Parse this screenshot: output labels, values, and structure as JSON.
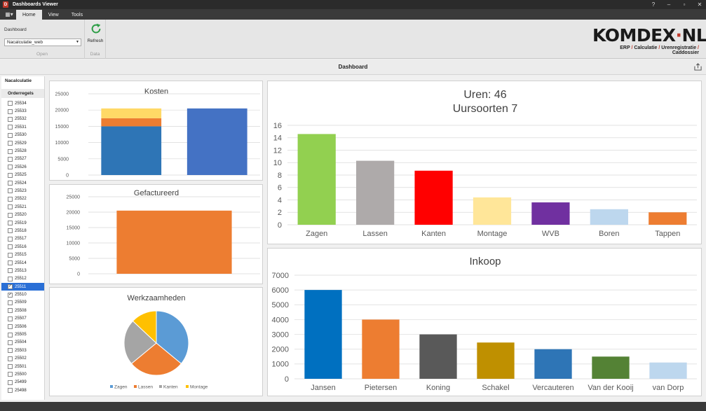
{
  "window": {
    "title": "Dashboards Viewer",
    "logo_letter": "D"
  },
  "tabs": [
    {
      "label": "Home"
    },
    {
      "label": "View"
    },
    {
      "label": "Tools"
    }
  ],
  "ribbon": {
    "dashboard_label": "Dashboard",
    "dashboard_value": "Nacalculatie_web",
    "group_open": "Open",
    "refresh_label": "Refresh",
    "group_data": "Data"
  },
  "brand": {
    "name_a": "KOMDEX",
    "name_dot": "·",
    "name_b": "NL",
    "tagline": [
      "ERP",
      "Calculatie",
      "Urenregistratie",
      "Caddossier"
    ]
  },
  "dashboard": {
    "title": "Dashboard"
  },
  "left_panel": {
    "heading": "Nacalculatie",
    "subheading": "Orderregels",
    "items": [
      {
        "label": "25534",
        "checked": false
      },
      {
        "label": "25533",
        "checked": false
      },
      {
        "label": "25532",
        "checked": false
      },
      {
        "label": "25531",
        "checked": false
      },
      {
        "label": "25530",
        "checked": false
      },
      {
        "label": "25529",
        "checked": false
      },
      {
        "label": "25528",
        "checked": false
      },
      {
        "label": "25527",
        "checked": false
      },
      {
        "label": "25526",
        "checked": false
      },
      {
        "label": "25525",
        "checked": false
      },
      {
        "label": "25524",
        "checked": false
      },
      {
        "label": "25523",
        "checked": false
      },
      {
        "label": "25522",
        "checked": false
      },
      {
        "label": "25521",
        "checked": false
      },
      {
        "label": "25520",
        "checked": false
      },
      {
        "label": "25519",
        "checked": false
      },
      {
        "label": "25518",
        "checked": false
      },
      {
        "label": "25517",
        "checked": false
      },
      {
        "label": "25516",
        "checked": false
      },
      {
        "label": "25515",
        "checked": false
      },
      {
        "label": "25514",
        "checked": false
      },
      {
        "label": "25513",
        "checked": false
      },
      {
        "label": "25512",
        "checked": false
      },
      {
        "label": "25511",
        "checked": true,
        "selected": true
      },
      {
        "label": "25510",
        "checked": true
      },
      {
        "label": "25509",
        "checked": false
      },
      {
        "label": "25508",
        "checked": false
      },
      {
        "label": "25507",
        "checked": false
      },
      {
        "label": "25506",
        "checked": false
      },
      {
        "label": "25505",
        "checked": false
      },
      {
        "label": "25504",
        "checked": false
      },
      {
        "label": "25503",
        "checked": false
      },
      {
        "label": "25502",
        "checked": false
      },
      {
        "label": "25501",
        "checked": false
      },
      {
        "label": "25500",
        "checked": false
      },
      {
        "label": "25499",
        "checked": false
      },
      {
        "label": "25498",
        "checked": false
      }
    ]
  },
  "chart_data": [
    {
      "id": "kosten",
      "type": "bar",
      "stacked": true,
      "title": "Kosten",
      "categories": [
        "",
        ""
      ],
      "series": [
        {
          "values": [
            15000,
            0
          ],
          "color": "#2e75b6"
        },
        {
          "values": [
            2500,
            0
          ],
          "color": "#ed7d31"
        },
        {
          "values": [
            3000,
            0
          ],
          "color": "#ffd966"
        },
        {
          "values": [
            0,
            20500
          ],
          "color": "#4472c4"
        }
      ],
      "yticks": [
        0,
        5000,
        10000,
        15000,
        20000,
        25000
      ],
      "ylim": [
        0,
        25000
      ],
      "grid": true
    },
    {
      "id": "gefactureerd",
      "type": "bar",
      "title": "Gefactureerd",
      "categories": [
        ""
      ],
      "values": [
        20500
      ],
      "colors": [
        "#ed7d31"
      ],
      "yticks": [
        0,
        5000,
        10000,
        15000,
        20000,
        25000
      ],
      "ylim": [
        0,
        25000
      ],
      "grid": true
    },
    {
      "id": "werkzaamheden",
      "type": "pie",
      "title": "Werkzaamheden",
      "categories": [
        "Zagen",
        "Lassen",
        "Kanten",
        "Montage"
      ],
      "values": [
        36,
        28,
        23,
        13
      ],
      "colors": [
        "#5b9bd5",
        "#ed7d31",
        "#a5a5a5",
        "#ffc000"
      ],
      "legend": "bottom"
    },
    {
      "id": "uren",
      "type": "bar",
      "title": "Uren: 46",
      "subtitle": "Uursoorten 7",
      "categories": [
        "Zagen",
        "Lassen",
        "Kanten",
        "Montage",
        "WVB",
        "Boren",
        "Tappen"
      ],
      "values": [
        14.6,
        10.3,
        8.7,
        4.4,
        3.6,
        2.5,
        2.0
      ],
      "colors": [
        "#92d050",
        "#aeaaaa",
        "#ff0000",
        "#ffe699",
        "#7030a0",
        "#bdd7ee",
        "#ed7d31"
      ],
      "yticks": [
        0,
        2,
        4,
        6,
        8,
        10,
        12,
        14,
        16
      ],
      "ylim": [
        0,
        16
      ],
      "grid": true
    },
    {
      "id": "inkoop",
      "type": "bar",
      "title": "Inkoop",
      "categories": [
        "Jansen",
        "Pietersen",
        "Koning",
        "Schakel",
        "Vercauteren",
        "Van der Kooij",
        "van Dorp"
      ],
      "values": [
        6000,
        4000,
        3000,
        2450,
        2000,
        1500,
        1100
      ],
      "colors": [
        "#0070c0",
        "#ed7d31",
        "#595959",
        "#bf9000",
        "#2e75b6",
        "#548235",
        "#bdd7ee"
      ],
      "yticks": [
        0,
        1000,
        2000,
        3000,
        4000,
        5000,
        6000,
        7000
      ],
      "ylim": [
        0,
        7000
      ],
      "grid": true
    }
  ]
}
